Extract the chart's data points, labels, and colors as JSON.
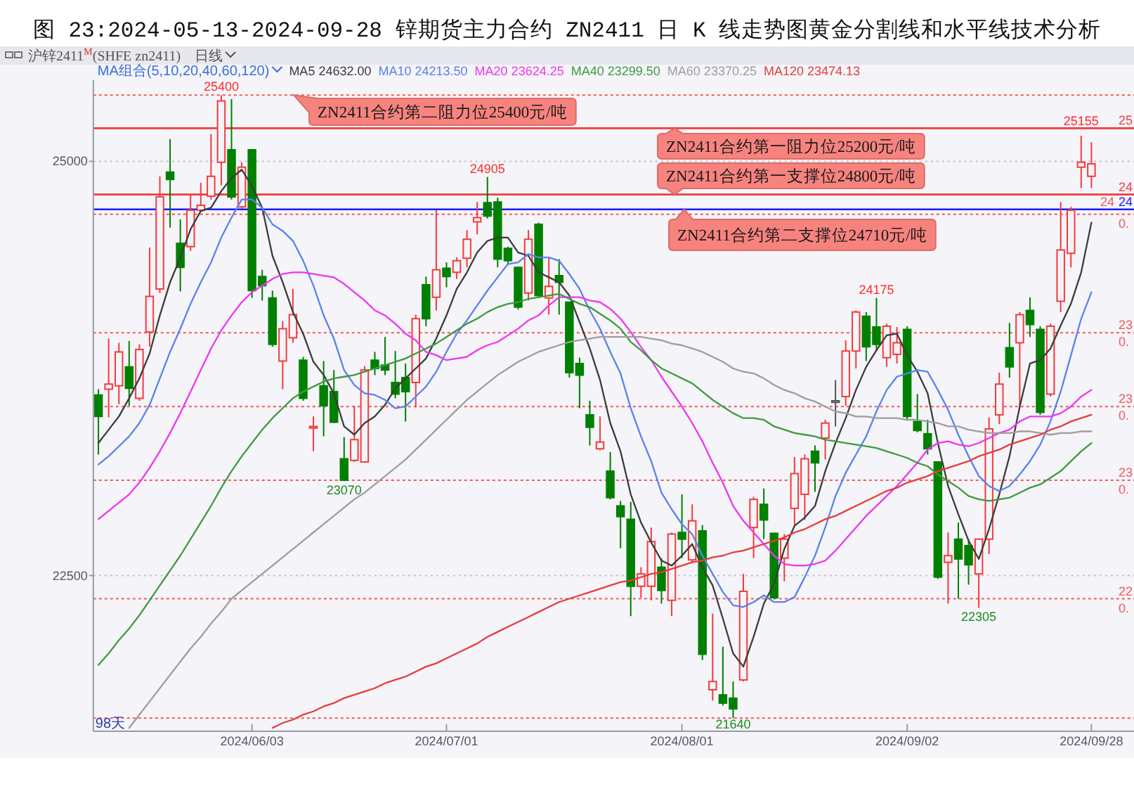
{
  "chart_data": {
    "type": "candlestick",
    "title": "图 23:2024-05-13-2024-09-28 锌期货主力合约 ZN2411 日 K 线走势图黄金分割线和水平线技术分析",
    "categories": [
      null,
      null,
      null,
      null,
      null,
      null,
      null,
      null,
      null,
      null,
      null,
      null,
      null,
      null,
      null,
      "2024/06/03",
      null,
      null,
      null,
      null,
      null,
      null,
      null,
      null,
      null,
      null,
      null,
      null,
      null,
      null,
      null,
      null,
      null,
      null,
      "2024/07/01",
      null,
      null,
      null,
      null,
      null,
      null,
      null,
      null,
      null,
      null,
      null,
      null,
      null,
      null,
      null,
      null,
      null,
      null,
      null,
      null,
      null,
      null,
      "2024/08/01",
      null,
      null,
      null,
      null,
      null,
      null,
      null,
      null,
      null,
      null,
      null,
      null,
      null,
      null,
      null,
      null,
      null,
      null,
      null,
      null,
      null,
      "2024/09/02",
      null,
      null,
      null,
      null,
      null,
      null,
      null,
      null,
      null,
      null,
      null,
      null,
      null,
      null,
      null,
      null,
      null,
      "2024/09/28"
    ],
    "ohlc": [
      [
        23590,
        23625,
        23230,
        23460
      ],
      [
        23625,
        23930,
        23455,
        23655
      ],
      [
        23645,
        23905,
        23535,
        23850
      ],
      [
        23760,
        23915,
        23525,
        23630
      ],
      [
        23570,
        23895,
        23555,
        23865
      ],
      [
        23970,
        24480,
        23880,
        24185
      ],
      [
        24230,
        24910,
        24205,
        24785
      ],
      [
        24935,
        25135,
        24600,
        24890
      ],
      [
        24505,
        24650,
        24215,
        24360
      ],
      [
        24485,
        24805,
        24460,
        24705
      ],
      [
        24705,
        24870,
        24695,
        24735
      ],
      [
        24790,
        25165,
        24770,
        24910
      ],
      [
        24995,
        25400,
        24855,
        25365
      ],
      [
        25070,
        25375,
        24770,
        24785
      ],
      [
        24725,
        24995,
        24715,
        24965
      ],
      [
        25070,
        25070,
        24175,
        24220
      ],
      [
        24305,
        24345,
        24160,
        24250
      ],
      [
        24175,
        24220,
        23880,
        23895
      ],
      [
        23795,
        24035,
        23625,
        23990
      ],
      [
        23935,
        24230,
        23905,
        24075
      ],
      [
        23800,
        23820,
        23555,
        23570
      ],
      [
        23390,
        23460,
        23250,
        23400
      ],
      [
        23645,
        23795,
        23340,
        23525
      ],
      [
        23610,
        23740,
        23420,
        23425
      ],
      [
        23205,
        23335,
        23070,
        23075
      ],
      [
        23195,
        23525,
        23185,
        23320
      ],
      [
        23185,
        23765,
        23180,
        23740
      ],
      [
        23800,
        23850,
        23710,
        23750
      ],
      [
        23770,
        23940,
        23710,
        23740
      ],
      [
        23665,
        23855,
        23570,
        23595
      ],
      [
        23695,
        23780,
        23430,
        23610
      ],
      [
        23665,
        24075,
        23515,
        24050
      ],
      [
        24255,
        24305,
        24005,
        24050
      ],
      [
        24180,
        24705,
        24100,
        24345
      ],
      [
        24355,
        24390,
        24240,
        24305
      ],
      [
        24330,
        24420,
        24290,
        24400
      ],
      [
        24415,
        24585,
        24360,
        24530
      ],
      [
        24635,
        24755,
        24560,
        24660
      ],
      [
        24750,
        24905,
        24655,
        24670
      ],
      [
        24755,
        24780,
        24360,
        24410
      ],
      [
        24475,
        24485,
        24380,
        24400
      ],
      [
        24360,
        24365,
        24105,
        24120
      ],
      [
        24205,
        24585,
        24160,
        24530
      ],
      [
        24620,
        24630,
        24175,
        24190
      ],
      [
        24175,
        24415,
        24075,
        24245
      ],
      [
        24310,
        24410,
        24075,
        24270
      ],
      [
        24150,
        24150,
        23695,
        23725
      ],
      [
        23780,
        23815,
        23510,
        23710
      ],
      [
        23470,
        23555,
        23285,
        23395
      ],
      [
        23265,
        23460,
        23255,
        23305
      ],
      [
        23130,
        23245,
        22960,
        22970
      ],
      [
        22920,
        22950,
        22665,
        22855
      ],
      [
        22840,
        22945,
        22255,
        22435
      ],
      [
        22435,
        22550,
        22365,
        22510
      ],
      [
        22435,
        22790,
        22350,
        22705
      ],
      [
        22550,
        22605,
        22330,
        22410
      ],
      [
        22350,
        22760,
        22255,
        22750
      ],
      [
        22760,
        22990,
        22605,
        22720
      ],
      [
        22595,
        22930,
        22580,
        22830
      ],
      [
        22770,
        22805,
        21990,
        22025
      ],
      [
        21810,
        22270,
        21745,
        21860
      ],
      [
        21780,
        22070,
        21715,
        21730
      ],
      [
        21760,
        21860,
        21640,
        21695
      ],
      [
        21870,
        22510,
        21860,
        22405
      ],
      [
        22790,
        22975,
        22605,
        22960
      ],
      [
        22930,
        23025,
        22720,
        22835
      ],
      [
        22755,
        22760,
        22360,
        22365
      ],
      [
        22605,
        22750,
        22465,
        22720
      ],
      [
        22905,
        23215,
        22805,
        23115
      ],
      [
        22990,
        23230,
        22835,
        23205
      ],
      [
        23250,
        23285,
        23005,
        23180
      ],
      [
        23330,
        23440,
        23200,
        23420
      ],
      [
        23545,
        23680,
        23400,
        23555
      ],
      [
        23580,
        23920,
        23525,
        23855
      ],
      [
        23855,
        24100,
        23750,
        24090
      ],
      [
        24065,
        24090,
        23795,
        23880
      ],
      [
        24000,
        24175,
        23855,
        23895
      ],
      [
        23815,
        24020,
        23760,
        24005
      ],
      [
        23835,
        24000,
        23780,
        23905
      ],
      [
        23985,
        24005,
        23440,
        23460
      ],
      [
        23430,
        23595,
        23365,
        23375
      ],
      [
        23355,
        23440,
        23230,
        23265
      ],
      [
        23185,
        23185,
        22480,
        22490
      ],
      [
        22580,
        22760,
        22330,
        22620
      ],
      [
        22720,
        22820,
        22360,
        22600
      ],
      [
        22680,
        22720,
        22445,
        22565
      ],
      [
        22510,
        22725,
        22305,
        22720
      ],
      [
        22720,
        23455,
        22630,
        23385
      ],
      [
        23470,
        23725,
        23415,
        23655
      ],
      [
        23875,
        24025,
        23695,
        23760
      ],
      [
        23905,
        24090,
        23525,
        24075
      ],
      [
        24100,
        24180,
        23940,
        24015
      ],
      [
        23985,
        24005,
        23470,
        23485
      ],
      [
        23595,
        24020,
        23580,
        24005
      ],
      [
        24155,
        24755,
        24090,
        24465
      ],
      [
        24445,
        24725,
        24360,
        24705
      ],
      [
        24965,
        25155,
        24840,
        24995
      ],
      [
        24910,
        25115,
        24840,
        24985
      ]
    ],
    "colors": [
      "#008000",
      "#f53b3b",
      "#f53b3b",
      "#008000",
      "#f53b3b",
      "#f53b3b",
      "#f53b3b",
      "#008000",
      "#008000",
      "#f53b3b",
      "#f53b3b",
      "#f53b3b",
      "#f53b3b",
      "#008000",
      "#f53b3b",
      "#008000",
      "#008000",
      "#008000",
      "#f53b3b",
      "#f53b3b",
      "#008000",
      "#f53b3b",
      "#008000",
      "#008000",
      "#008000",
      "#f53b3b",
      "#f53b3b",
      "#008000",
      "#008000",
      "#008000",
      "#008000",
      "#f53b3b",
      "#008000",
      "#f53b3b",
      "#008000",
      "#f53b3b",
      "#f53b3b",
      "#f53b3b",
      "#008000",
      "#008000",
      "#008000",
      "#008000",
      "#f53b3b",
      "#008000",
      "#f53b3b",
      "#008000",
      "#008000",
      "#008000",
      "#008000",
      "#f53b3b",
      "#008000",
      "#008000",
      "#008000",
      "#f53b3b",
      "#f53b3b",
      "#008000",
      "#f53b3b",
      "#008000",
      "#f53b3b",
      "#008000",
      "#f53b3b",
      "#008000",
      "#008000",
      "#f53b3b",
      "#f53b3b",
      "#008000",
      "#008000",
      "#f53b3b",
      "#f53b3b",
      "#f53b3b",
      "#008000",
      "#f53b3b",
      "#555555",
      "#f53b3b",
      "#f53b3b",
      "#008000",
      "#008000",
      "#f53b3b",
      "#f53b3b",
      "#008000",
      "#008000",
      "#008000",
      "#008000",
      "#f53b3b",
      "#008000",
      "#008000",
      "#f53b3b",
      "#f53b3b",
      "#f53b3b",
      "#008000",
      "#f53b3b",
      "#008000",
      "#008000",
      "#f53b3b",
      "#f53b3b",
      "#f53b3b",
      "#f53b3b",
      "#f53b3b"
    ],
    "value_labels": [
      null,
      null,
      null,
      null,
      null,
      null,
      null,
      null,
      null,
      null,
      null,
      null,
      "25400",
      null,
      null,
      null,
      null,
      null,
      null,
      null,
      null,
      null,
      null,
      null,
      "23070",
      null,
      null,
      null,
      null,
      null,
      null,
      null,
      null,
      null,
      null,
      null,
      null,
      null,
      "24905",
      null,
      null,
      null,
      null,
      null,
      null,
      null,
      null,
      null,
      null,
      null,
      null,
      null,
      null,
      null,
      null,
      null,
      null,
      null,
      null,
      null,
      null,
      null,
      "21640",
      null,
      null,
      null,
      null,
      null,
      null,
      null,
      null,
      null,
      null,
      null,
      null,
      null,
      "24175",
      null,
      null,
      null,
      null,
      null,
      null,
      null,
      null,
      null,
      "22305",
      null,
      null,
      null,
      null,
      null,
      null,
      null,
      null,
      null,
      "25155",
      null
    ],
    "legend_title": "MA组合(5,10,20,40,60,120)",
    "legend": "top left",
    "series": [
      {
        "name": "MA5 24632.00",
        "type": "line",
        "color": "#3c3c3c",
        "values": [
          23300,
          23380,
          23460,
          23570,
          23690,
          23840,
          24070,
          24270,
          24420,
          24590,
          24700,
          24720,
          24820,
          24900,
          24950,
          24850,
          24720,
          24430,
          24270,
          24090,
          23960,
          23790,
          23710,
          23600,
          23400,
          23350,
          23420,
          23460,
          23530,
          23630,
          23690,
          23750,
          23810,
          23930,
          24070,
          24230,
          24330,
          24450,
          24520,
          24540,
          24540,
          24450,
          24430,
          24330,
          24300,
          24270,
          24190,
          24030,
          23870,
          23680,
          23420,
          23250,
          22990,
          22820,
          22700,
          22590,
          22560,
          22620,
          22690,
          22550,
          22440,
          22240,
          22030,
          21950,
          22130,
          22330,
          22450,
          22660,
          22800,
          22850,
          22920,
          23130,
          23300,
          23450,
          23620,
          23760,
          23860,
          23950,
          23960,
          23830,
          23730,
          23600,
          23300,
          23040,
          22870,
          22710,
          22600,
          22780,
          22990,
          23220,
          23520,
          23780,
          23800,
          23870,
          24010,
          24140,
          24330,
          24630
        ]
      },
      {
        "name": "MA10 24213.50",
        "type": "line",
        "color": "#5b82ea",
        "values": [
          23170,
          23220,
          23280,
          23340,
          23420,
          23530,
          23690,
          23850,
          23990,
          24140,
          24270,
          24390,
          24540,
          24660,
          24770,
          24770,
          24720,
          24620,
          24580,
          24520,
          24400,
          24250,
          24070,
          23930,
          23740,
          23650,
          23600,
          23590,
          23560,
          23510,
          23520,
          23580,
          23640,
          23730,
          23850,
          23960,
          24040,
          24130,
          24220,
          24300,
          24380,
          24390,
          24440,
          24420,
          24420,
          24400,
          24320,
          24230,
          24100,
          23990,
          23850,
          23720,
          23510,
          23340,
          23190,
          23000,
          22900,
          22810,
          22750,
          22620,
          22510,
          22400,
          22320,
          22310,
          22340,
          22380,
          22340,
          22340,
          22370,
          22490,
          22620,
          22790,
          22980,
          23120,
          23230,
          23340,
          23490,
          23620,
          23700,
          23720,
          23740,
          23730,
          23620,
          23500,
          23350,
          23220,
          23100,
          23040,
          23010,
          23040,
          23110,
          23190,
          23290,
          23430,
          23610,
          23830,
          24050,
          24210
        ]
      },
      {
        "name": "MA20 23624.25",
        "type": "line",
        "color": "#f035f0",
        "values": [
          22840,
          22890,
          22940,
          22990,
          23060,
          23150,
          23250,
          23360,
          23480,
          23610,
          23740,
          23870,
          23980,
          24070,
          24150,
          24210,
          24250,
          24290,
          24320,
          24330,
          24330,
          24320,
          24310,
          24300,
          24260,
          24210,
          24160,
          24100,
          24070,
          24020,
          23960,
          23920,
          23850,
          23830,
          23800,
          23810,
          23820,
          23860,
          23890,
          23910,
          23950,
          23990,
          24040,
          24070,
          24130,
          24180,
          24180,
          24180,
          24160,
          24150,
          24110,
          24050,
          23970,
          23880,
          23800,
          23700,
          23610,
          23520,
          23420,
          23310,
          23180,
          23060,
          22920,
          22830,
          22760,
          22690,
          22620,
          22570,
          22560,
          22560,
          22570,
          22590,
          22650,
          22720,
          22790,
          22860,
          22920,
          22980,
          23040,
          23110,
          23180,
          23260,
          23300,
          23310,
          23290,
          23280,
          23300,
          23330,
          23360,
          23380,
          23430,
          23460,
          23460,
          23460,
          23480,
          23520,
          23580,
          23620
        ]
      },
      {
        "name": "MA40 23299.50",
        "type": "line",
        "color": "#3f9a3f",
        "values": [
          21960,
          22030,
          22110,
          22180,
          22260,
          22350,
          22440,
          22530,
          22620,
          22720,
          22820,
          22920,
          23030,
          23130,
          23220,
          23300,
          23380,
          23450,
          23510,
          23570,
          23610,
          23640,
          23670,
          23690,
          23700,
          23710,
          23730,
          23750,
          23770,
          23790,
          23810,
          23840,
          23870,
          23900,
          23940,
          23980,
          24020,
          24050,
          24090,
          24120,
          24140,
          24150,
          24170,
          24180,
          24190,
          24200,
          24170,
          24140,
          24120,
          24080,
          24040,
          23990,
          23910,
          23860,
          23800,
          23750,
          23720,
          23690,
          23660,
          23610,
          23560,
          23520,
          23480,
          23450,
          23450,
          23440,
          23400,
          23380,
          23360,
          23350,
          23340,
          23320,
          23310,
          23300,
          23290,
          23280,
          23270,
          23250,
          23230,
          23210,
          23180,
          23160,
          23110,
          23070,
          23030,
          22980,
          22960,
          22950,
          22960,
          22970,
          23000,
          23030,
          23050,
          23090,
          23130,
          23190,
          23250,
          23300
        ]
      },
      {
        "name": "MA60 23370.25",
        "type": "line",
        "color": "#9e9e9e",
        "values": [
          null,
          null,
          null,
          21580,
          21660,
          21740,
          21820,
          21900,
          21980,
          22060,
          22130,
          22210,
          22280,
          22360,
          22410,
          22460,
          22510,
          22560,
          22610,
          22660,
          22710,
          22760,
          22810,
          22860,
          22910,
          22960,
          23000,
          23050,
          23100,
          23150,
          23200,
          23260,
          23320,
          23380,
          23440,
          23500,
          23560,
          23610,
          23660,
          23710,
          23750,
          23790,
          23820,
          23850,
          23870,
          23890,
          23910,
          23920,
          23930,
          23940,
          23940,
          23940,
          23940,
          23940,
          23930,
          23920,
          23900,
          23890,
          23870,
          23850,
          23820,
          23790,
          23750,
          23730,
          23720,
          23690,
          23650,
          23620,
          23600,
          23570,
          23550,
          23520,
          23490,
          23480,
          23460,
          23460,
          23450,
          23450,
          23450,
          23440,
          23440,
          23430,
          23420,
          23400,
          23400,
          23380,
          23370,
          23360,
          23360,
          23360,
          23370,
          23370,
          23360,
          23350,
          23360,
          23360,
          23370,
          23370
        ]
      },
      {
        "name": "MA120 23474.13",
        "type": "line",
        "color": "#e63c3c",
        "values": [
          null,
          null,
          null,
          null,
          null,
          null,
          null,
          null,
          null,
          null,
          null,
          null,
          null,
          null,
          null,
          null,
          null,
          21580,
          21610,
          21630,
          21660,
          21680,
          21710,
          21730,
          21760,
          21780,
          21800,
          21820,
          21850,
          21870,
          21890,
          21920,
          21950,
          21970,
          22000,
          22030,
          22060,
          22090,
          22130,
          22160,
          22190,
          22220,
          22250,
          22280,
          22310,
          22340,
          22360,
          22380,
          22400,
          22420,
          22440,
          22460,
          22470,
          22490,
          22510,
          22520,
          22540,
          22560,
          22580,
          22590,
          22610,
          22620,
          22640,
          22650,
          22670,
          22690,
          22710,
          22730,
          22760,
          22780,
          22810,
          22840,
          22860,
          22890,
          22920,
          22950,
          22980,
          23010,
          23030,
          23060,
          23080,
          23100,
          23130,
          23150,
          23170,
          23190,
          23220,
          23240,
          23260,
          23290,
          23310,
          23330,
          23350,
          23380,
          23400,
          23430,
          23450,
          23470
        ]
      }
    ],
    "ylim": [
      21560,
      25490
    ],
    "yticks": [
      22500,
      25000
    ],
    "grid": "y",
    "ref_lines": [
      {
        "axis": "y",
        "value": 25400,
        "color": "#f25a5a",
        "line_style": "dotted"
      },
      {
        "axis": "y",
        "value": 25200,
        "color": "#f03c3c",
        "line_style": "solid"
      },
      {
        "axis": "y",
        "value": 24800,
        "color": "#f03c3c",
        "line_style": "solid"
      },
      {
        "axis": "y",
        "value": 24710,
        "color": "#1a1aff",
        "line_style": "solid"
      },
      {
        "axis": "y",
        "value": 24680,
        "color": "#f25a5a",
        "line_style": "dotted"
      },
      {
        "axis": "y",
        "value": 23965,
        "color": "#f25a5a",
        "line_style": "dotted"
      },
      {
        "axis": "y",
        "value": 23520,
        "color": "#f25a5a",
        "line_style": "dotted"
      },
      {
        "axis": "y",
        "value": 23075,
        "color": "#f25a5a",
        "line_style": "dotted"
      },
      {
        "axis": "y",
        "value": 22360,
        "color": "#f25a5a",
        "line_style": "dotted"
      },
      {
        "axis": "y",
        "value": 21640,
        "color": "#f25a5a",
        "line_style": "dotted"
      }
    ],
    "annotations": [
      "沪锌2411$^{M}$(SHFE zn2411)",
      "日线",
      "98天",
      {
        "text": "ZN2411合约第二阻力位25400元/吨",
        "y": 25400
      },
      {
        "text": "ZN2411合约第一阻力位25200元/吨",
        "y": 25200
      },
      {
        "text": "ZN2411合约第一支撑位24800元/吨",
        "y": 24800
      },
      {
        "text": "ZN2411合约第二支撑位24710元/吨",
        "y": 24710
      },
      "25",
      "24",
      "24",
      "24",
      "0.",
      "23",
      "0.",
      "23",
      "0.",
      "23",
      "0.",
      "22",
      "0."
    ]
  }
}
